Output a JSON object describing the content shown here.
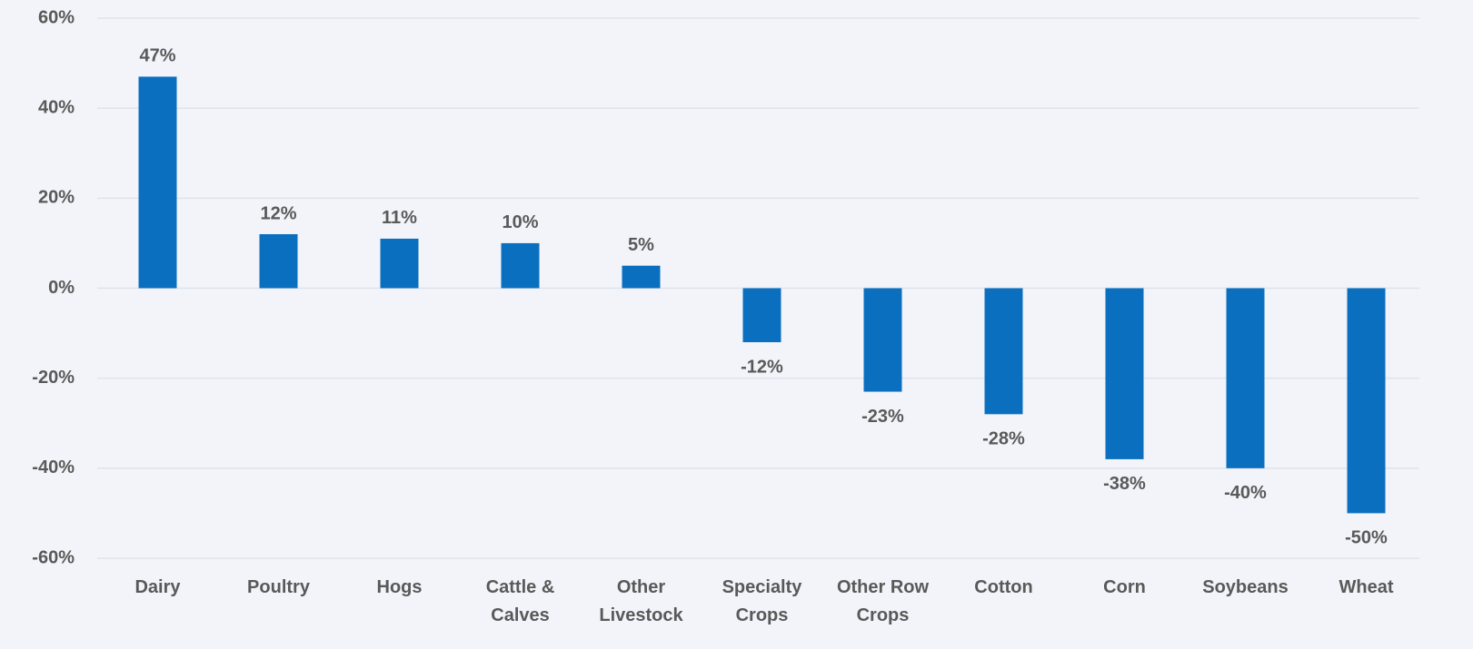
{
  "chart_data": {
    "type": "bar",
    "categories": [
      "Dairy",
      "Poultry",
      "Hogs",
      "Cattle & Calves",
      "Other Livestock",
      "Specialty Crops",
      "Other Row Crops",
      "Cotton",
      "Corn",
      "Soybeans",
      "Wheat"
    ],
    "values": [
      47,
      12,
      11,
      10,
      5,
      -12,
      -23,
      -28,
      -38,
      -40,
      -50
    ],
    "value_labels": [
      "47%",
      "12%",
      "11%",
      "10%",
      "5%",
      "-12%",
      "-23%",
      "-28%",
      "-38%",
      "-40%",
      "-50%"
    ],
    "color": "#0b6fc0",
    "ylim": [
      -60,
      60
    ],
    "yticks": [
      {
        "value": -60,
        "label": "-60%"
      },
      {
        "value": -40,
        "label": "-40%"
      },
      {
        "value": -20,
        "label": "-20%"
      },
      {
        "value": 0,
        "label": "0%"
      },
      {
        "value": 20,
        "label": "20%"
      },
      {
        "value": 40,
        "label": "40%"
      },
      {
        "value": 60,
        "label": "60%"
      }
    ],
    "grid": true
  }
}
